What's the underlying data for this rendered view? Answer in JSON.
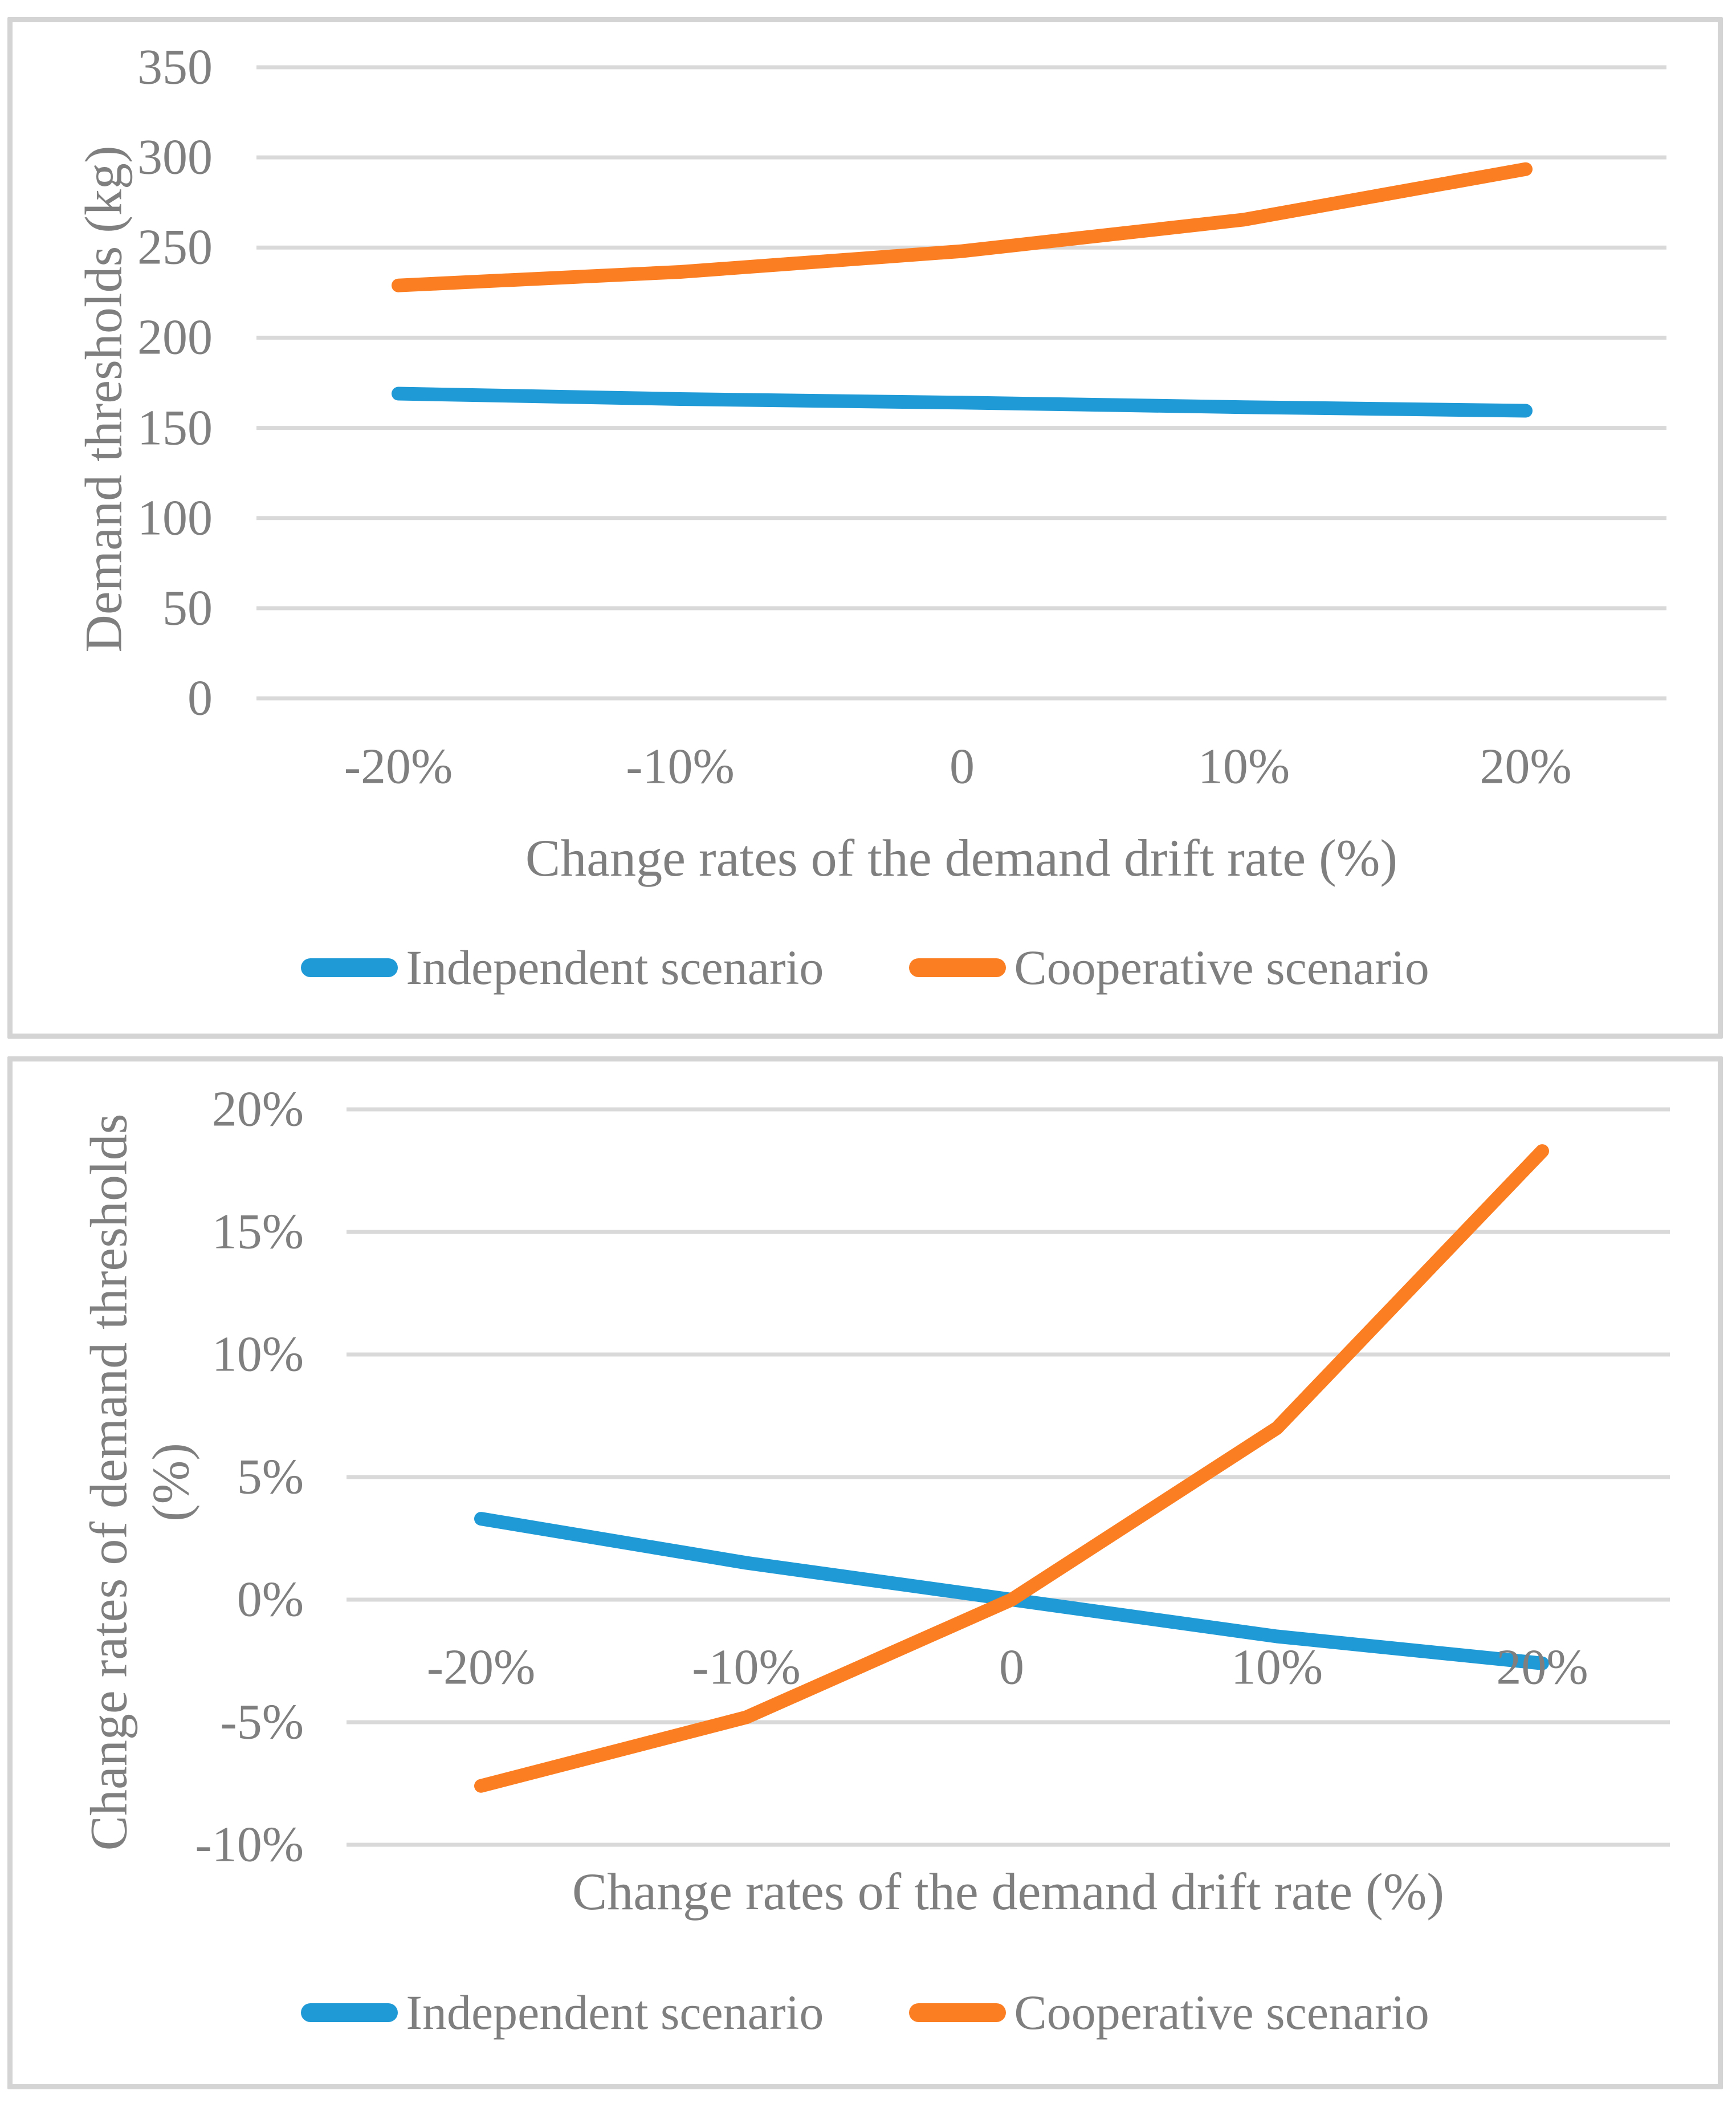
{
  "chart_data": [
    {
      "type": "line",
      "title": "",
      "xlabel": "Change rates of the demand drift rate (%)",
      "ylabel": "Demand thresholds (kg)",
      "categories": [
        "-20%",
        "-10%",
        "0",
        "10%",
        "20%"
      ],
      "series": [
        {
          "name": "Independent scenario",
          "color": "#1f9ad7",
          "values": [
            169,
            166,
            164,
            161.5,
            159.5
          ]
        },
        {
          "name": "Cooperative scenario",
          "color": "#fc7e22",
          "values": [
            229,
            236.5,
            248,
            265.5,
            293.5
          ]
        }
      ],
      "ylim": [
        0,
        350
      ],
      "ytick_step": 50,
      "ytick_labels": [
        "350",
        "300",
        "250",
        "200",
        "150",
        "100",
        "50",
        "0"
      ],
      "grid": true,
      "legend_position": "bottom"
    },
    {
      "type": "line",
      "title": "",
      "xlabel": "Change rates of the demand drift rate (%)",
      "ylabel": "Change rates of demand thresholds (%)",
      "ylabel_lines": [
        "Change rates of demand thresholds",
        "(%)"
      ],
      "categories": [
        "-20%",
        "-10%",
        "0",
        "10%",
        "20%"
      ],
      "series": [
        {
          "name": "Independent scenario",
          "color": "#1f9ad7",
          "values": [
            3.3,
            1.5,
            0,
            -1.5,
            -2.6
          ]
        },
        {
          "name": "Cooperative scenario",
          "color": "#fc7e22",
          "values": [
            -7.6,
            -4.8,
            0,
            7.0,
            18.3
          ]
        }
      ],
      "ylim": [
        -10,
        20
      ],
      "ytick_step": 5,
      "ytick_labels": [
        "20%",
        "15%",
        "10%",
        "5%",
        "0%",
        "-5%",
        "-10%"
      ],
      "grid": true,
      "legend_position": "bottom"
    }
  ],
  "colors": {
    "grid": "#d9d9d9",
    "panel_border": "#d4d4d4",
    "axis_text": "#7f7f7f",
    "independent": "#1f9ad7",
    "cooperative": "#fc7e22"
  }
}
